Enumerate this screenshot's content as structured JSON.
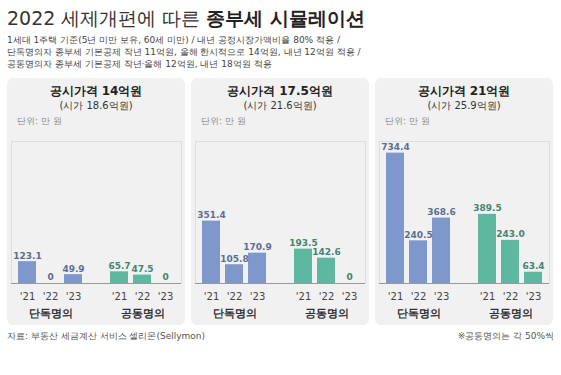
{
  "title": "2022 세제개편에 따른 종부세 시뮬레이션",
  "subtitle": [
    "1세대 1주택 기준(5년 미만 보유, 60세 미만) / 내년 공정시장가액비율 80% 적용 /",
    "단독명의자 종부세 기본공제 작년 11억원, 올해 한시적으로 14억원, 내년 12억원 적용 /",
    "공동명의자 종부세 기본공제 작년·올해 12억원, 내년 18억원 적용"
  ],
  "source": "자료: 부동산 세금계산 서비스 셀리몬(Sellymon)",
  "note": "※공동명의는 각 50%씩",
  "chart_data": [
    {
      "type": "bar",
      "title": "공시가격 14억원",
      "subtitle": "(시가 18.6억원)",
      "annotations": [
        "단위: 만 원"
      ],
      "categories": [
        "'21",
        "'22",
        "'23"
      ],
      "series": [
        {
          "name": "단독명의",
          "color": "#7f98cc",
          "values": [
            123.1,
            0,
            49.9
          ]
        },
        {
          "name": "공동명의",
          "color": "#5db89f",
          "values": [
            65.7,
            47.5,
            0
          ]
        }
      ],
      "ylim": [
        0,
        800
      ],
      "yticks": [],
      "data_labels": true,
      "tick_labels": "x"
    },
    {
      "type": "bar",
      "title": "공시가격 17.5억원",
      "subtitle": "(시가 21.6억원)",
      "annotations": [
        "단위: 만 원"
      ],
      "categories": [
        "'21",
        "'22",
        "'23"
      ],
      "series": [
        {
          "name": "단독명의",
          "color": "#7f98cc",
          "values": [
            351.4,
            105.8,
            170.9
          ]
        },
        {
          "name": "공동명의",
          "color": "#5db89f",
          "values": [
            193.5,
            142.6,
            0
          ]
        }
      ],
      "ylim": [
        0,
        800
      ],
      "yticks": [],
      "data_labels": true,
      "tick_labels": "x"
    },
    {
      "type": "bar",
      "title": "공시가격 21억원",
      "subtitle": "(시가 25.9억원)",
      "annotations": [
        "단위: 만 원"
      ],
      "categories": [
        "'21",
        "'22",
        "'23"
      ],
      "series": [
        {
          "name": "단독명의",
          "color": "#7f98cc",
          "values": [
            734.4,
            240.5,
            368.6
          ]
        },
        {
          "name": "공동명의",
          "color": "#5db89f",
          "values": [
            389.5,
            243.0,
            63.4
          ],
          "value_labels": [
            "389.5",
            "243.0",
            "63.4"
          ]
        }
      ],
      "ylim": [
        0,
        800
      ],
      "yticks": [],
      "data_labels": true,
      "tick_labels": "x"
    }
  ]
}
